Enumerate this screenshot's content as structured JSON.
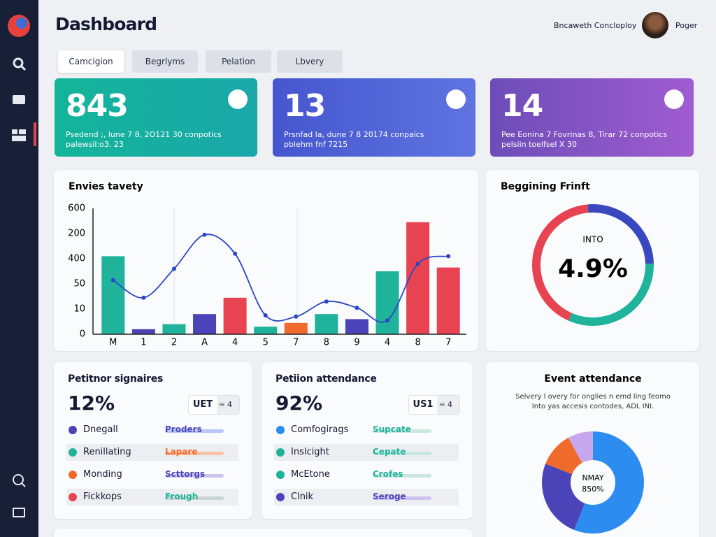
{
  "header": {
    "title": "Dashboard",
    "organization": "Bncaweth Concloploy",
    "user": "Poger"
  },
  "tabs": [
    "Camcigion",
    "Begrlyms",
    "Pelation",
    "Lbvery"
  ],
  "stat_cards": [
    {
      "value": "843",
      "lines": [
        "Psedend ;, lune 7 8, 2O121 30 conpotics",
        "palewsil:o3. 23"
      ]
    },
    {
      "value": "13",
      "lines": [
        "Prsnfad la, dune 7 8 20174 conpaics",
        "pblehm fnf 7215"
      ]
    },
    {
      "value": "14",
      "lines": [
        "Pee Eonina 7 Fovrinas 8, Tirar 72 conpotics",
        "pelsiin toelfsel X 30"
      ]
    }
  ],
  "chart_data": [
    {
      "type": "combo",
      "title": "Envies tavety",
      "y_axis_labels": [
        "600",
        "200",
        "400",
        "50",
        "10",
        "0"
      ],
      "categories": [
        "M",
        "1",
        "2",
        "A",
        "4",
        "5",
        "7",
        "8",
        "9",
        "4",
        "8",
        "7"
      ],
      "ylim": [
        0,
        100
      ],
      "series": [
        {
          "type": "bar",
          "values": [
            62,
            4,
            8,
            16,
            29,
            6,
            9,
            16,
            12,
            50,
            89,
            53
          ],
          "colors": [
            "#1fb39b",
            "#4a44b8",
            "#1fb39b",
            "#4a44b8",
            "#e84350",
            "#1fb39b",
            "#f06a2b",
            "#1fb39b",
            "#4a44b8",
            "#1fb39b",
            "#e84350",
            "#e84350"
          ]
        },
        {
          "type": "line",
          "color": "#2b46c4",
          "values": [
            43,
            29,
            52,
            79,
            64,
            15,
            14,
            26,
            21,
            11,
            56,
            62
          ]
        }
      ]
    },
    {
      "type": "donut",
      "title": "Beggining Frinft",
      "center_label": "INTO",
      "center_value": "4.9%",
      "values": [
        26,
        32,
        42
      ],
      "colors": [
        "#3a48c0",
        "#1fb39b",
        "#e84350"
      ]
    },
    {
      "type": "donut",
      "title": "Event attendance",
      "subtitle": [
        "Selvery l overy for onglies n emd ling feomo",
        "Into yas accesis contodes, ADL INI."
      ],
      "center_label": "NMAY",
      "center_value": "850%",
      "values": [
        56,
        25,
        11,
        8
      ],
      "colors": [
        "#2d8cf0",
        "#4a44b8",
        "#f06a2b",
        "#c7a7ee"
      ]
    }
  ],
  "list_cards": [
    {
      "title": "Petitnor signaires",
      "value": "12%",
      "badge": {
        "label": "UET",
        "count": "4"
      },
      "rows": [
        {
          "label": "Dnegall",
          "value": "Proders",
          "dot": "#4a44b8",
          "value_color": "#4a44b8",
          "bar": "#b9c6f7"
        },
        {
          "label": "Renillating",
          "value": "Lapare",
          "dot": "#1fb39b",
          "value_color": "#f06a2b",
          "bar": "#f8c2a6"
        },
        {
          "label": "Monding",
          "value": "Scttorgs",
          "dot": "#f06a2b",
          "value_color": "#4a44b8",
          "bar": "#cfc3f2"
        },
        {
          "label": "Fickkops",
          "value": "Frough",
          "dot": "#e84350",
          "value_color": "#1fb39b",
          "bar": "#c9d6d3"
        }
      ]
    },
    {
      "title": "Petiion attendance",
      "value": "92%",
      "badge": {
        "label": "US1",
        "count": "4"
      },
      "rows": [
        {
          "label": "Comfogirags",
          "value": "Supcate",
          "dot": "#2d8cf0",
          "value_color": "#1fb39b",
          "bar": "#c9e6df"
        },
        {
          "label": "Inslcight",
          "value": "Cepate",
          "dot": "#1fb39b",
          "value_color": "#1fb39b",
          "bar": "#c9e6df"
        },
        {
          "label": "McEtone",
          "value": "Crofes",
          "dot": "#1fb39b",
          "value_color": "#1fb39b",
          "bar": "#c9e6df"
        },
        {
          "label": "Clnik",
          "value": "Seroge",
          "dot": "#4a44b8",
          "value_color": "#4a44b8",
          "bar": "#cfc3f2"
        }
      ]
    }
  ]
}
